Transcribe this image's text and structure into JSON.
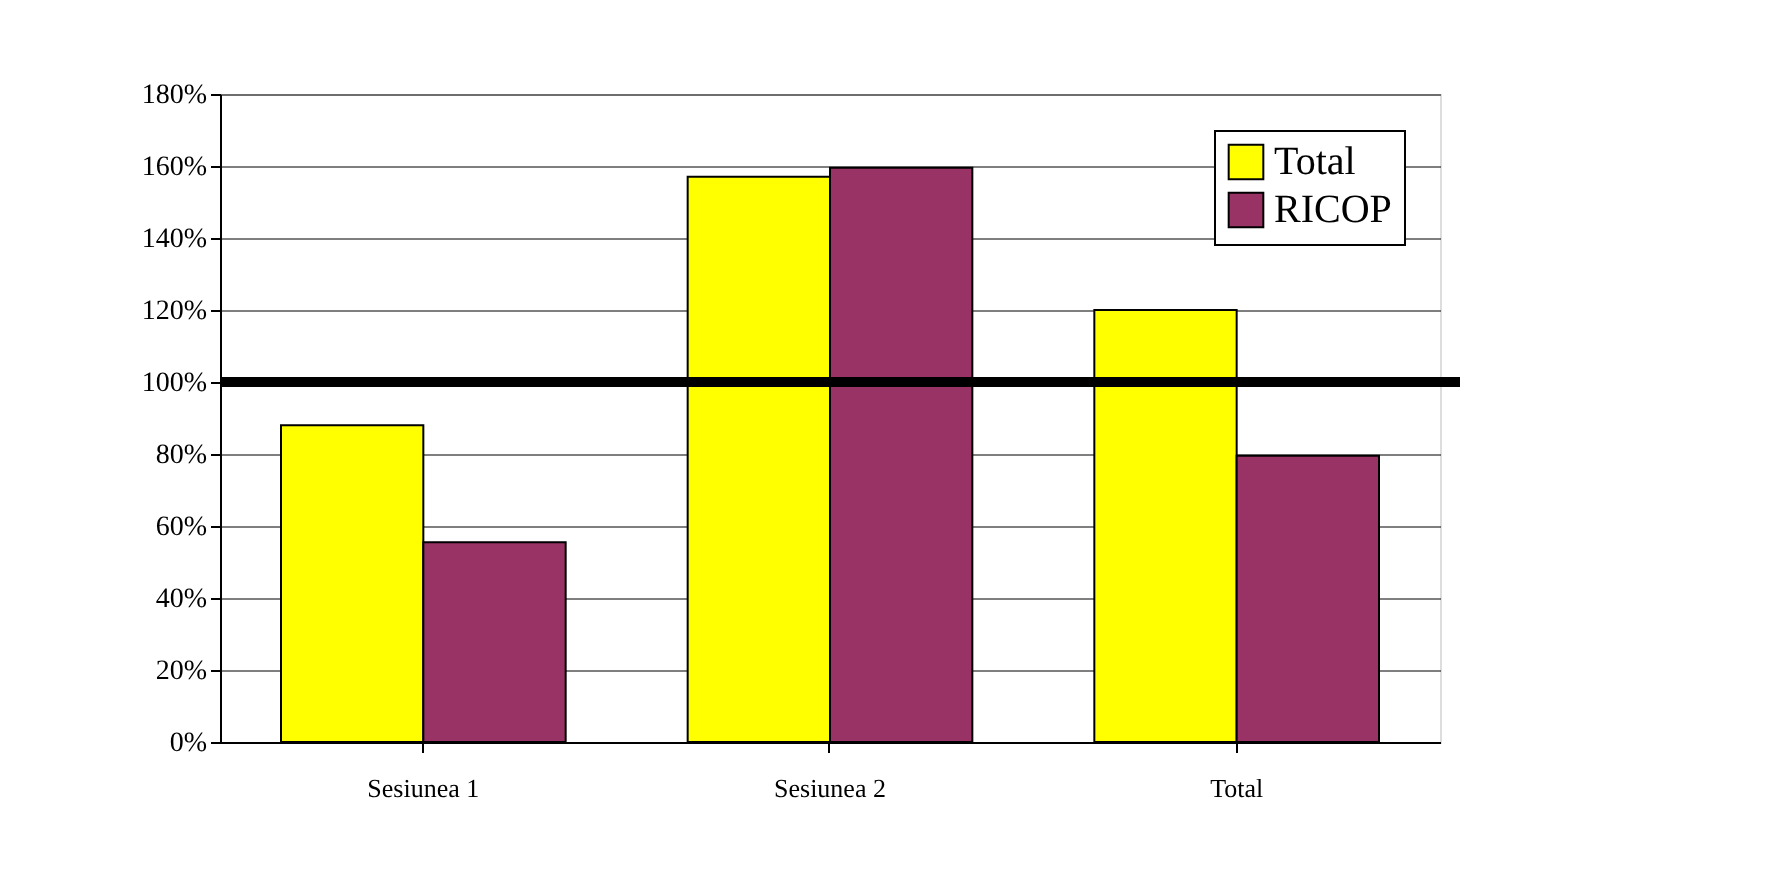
{
  "chart_data": {
    "type": "bar",
    "categories": [
      "Sesiunea 1",
      "Sesiunea 2",
      "Total"
    ],
    "series": [
      {
        "name": "Total",
        "color": "#ffff00",
        "values": [
          88,
          157,
          120
        ]
      },
      {
        "name": "RICOP",
        "color": "#993366",
        "values": [
          55.5,
          159.5,
          79.5
        ]
      }
    ],
    "ylim": [
      0,
      180
    ],
    "yticks": [
      {
        "value": 0,
        "label": "0%"
      },
      {
        "value": 20,
        "label": "20%"
      },
      {
        "value": 40,
        "label": "40%"
      },
      {
        "value": 60,
        "label": "60%"
      },
      {
        "value": 80,
        "label": "80%"
      },
      {
        "value": 100,
        "label": "100%"
      },
      {
        "value": 120,
        "label": "120%"
      },
      {
        "value": 140,
        "label": "140%"
      },
      {
        "value": 160,
        "label": "160%"
      },
      {
        "value": 180,
        "label": "180%"
      }
    ],
    "ref_lines": [
      {
        "axis": "y",
        "value": 100,
        "color": "#000000"
      }
    ],
    "grid": "y",
    "legend": "top right"
  }
}
